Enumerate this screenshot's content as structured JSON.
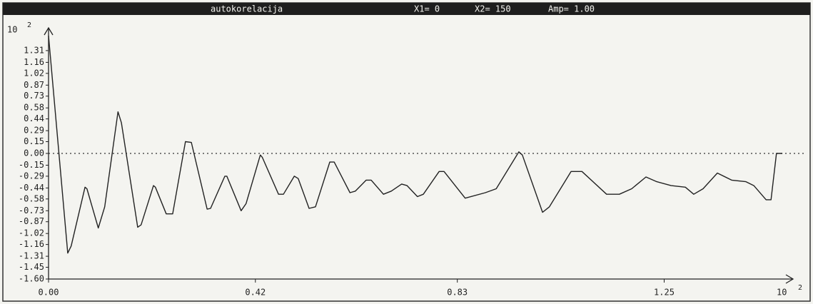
{
  "chart_data": {
    "type": "line",
    "title": "autokorelacija",
    "title_bar_items": [
      "X1= 0",
      "X2= 150",
      "Amp= 1.00"
    ],
    "y_exponent": {
      "base": "10",
      "power": "2"
    },
    "x_exponent": {
      "base": "10",
      "power": "2"
    },
    "color": "#222222",
    "zero_line": true,
    "xlim": [
      0,
      1.5
    ],
    "ylim": [
      -1.6,
      1.6
    ],
    "xticks": [
      {
        "value": 0,
        "label": "0.00"
      },
      0.42,
      0.83,
      1.25
    ],
    "yticks": [
      1.31,
      1.16,
      1.02,
      0.87,
      0.73,
      0.58,
      0.44,
      0.29,
      0.15,
      {
        "value": 0,
        "label": "0.00"
      },
      -0.15,
      -0.29,
      -0.44,
      -0.58,
      -0.73,
      -0.87,
      -1.02,
      -1.16,
      -1.31,
      -1.45,
      {
        "value": -1.6,
        "label": "-1.60"
      }
    ],
    "x": [
      0,
      0.039,
      0.046,
      0.074,
      0.078,
      0.101,
      0.114,
      0.141,
      0.148,
      0.181,
      0.188,
      0.213,
      0.217,
      0.239,
      0.252,
      0.278,
      0.29,
      0.322,
      0.329,
      0.358,
      0.362,
      0.391,
      0.401,
      0.43,
      0.434,
      0.467,
      0.477,
      0.499,
      0.507,
      0.529,
      0.542,
      0.571,
      0.58,
      0.612,
      0.623,
      0.645,
      0.655,
      0.68,
      0.696,
      0.717,
      0.728,
      0.749,
      0.761,
      0.793,
      0.803,
      0.846,
      0.887,
      0.909,
      0.955,
      0.962,
      1.003,
      1.017,
      1.061,
      1.083,
      1.133,
      1.159,
      1.184,
      1.213,
      1.235,
      1.264,
      1.293,
      1.31,
      1.329,
      1.358,
      1.387,
      1.416,
      1.432,
      1.457,
      1.467,
      1.478,
      1.49
    ],
    "values": [
      1.5,
      -1.27,
      -1.18,
      -0.43,
      -0.45,
      -0.95,
      -0.68,
      0.53,
      0.39,
      -0.94,
      -0.91,
      -0.41,
      -0.43,
      -0.77,
      -0.77,
      0.15,
      0.14,
      -0.71,
      -0.7,
      -0.29,
      -0.29,
      -0.73,
      -0.64,
      -0.02,
      -0.05,
      -0.52,
      -0.52,
      -0.29,
      -0.32,
      -0.7,
      -0.68,
      -0.11,
      -0.11,
      -0.5,
      -0.48,
      -0.34,
      -0.34,
      -0.52,
      -0.48,
      -0.39,
      -0.41,
      -0.55,
      -0.52,
      -0.23,
      -0.23,
      -0.57,
      -0.5,
      -0.45,
      0.02,
      -0.02,
      -0.75,
      -0.68,
      -0.23,
      -0.23,
      -0.52,
      -0.52,
      -0.45,
      -0.3,
      -0.36,
      -0.41,
      -0.43,
      -0.52,
      -0.45,
      -0.25,
      -0.34,
      -0.36,
      -0.41,
      -0.59,
      -0.59,
      0,
      0
    ]
  }
}
